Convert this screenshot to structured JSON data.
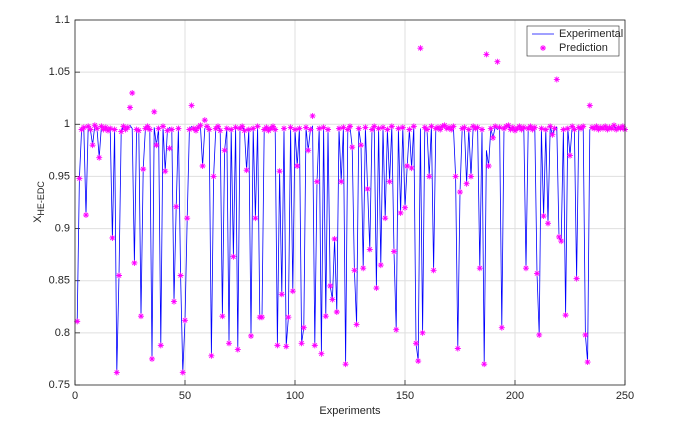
{
  "chart_data": {
    "type": "line",
    "xlabel": "Experiments",
    "ylabel": "X",
    "ylabel_subscript": "HE-EDC",
    "x": [
      1,
      2,
      3,
      4,
      5,
      6,
      7,
      8,
      9,
      10,
      11,
      12,
      13,
      14,
      15,
      16,
      17,
      18,
      19,
      20,
      21,
      22,
      23,
      24,
      25,
      26,
      27,
      28,
      29,
      30,
      31,
      32,
      33,
      34,
      35,
      36,
      37,
      38,
      39,
      40,
      41,
      42,
      43,
      44,
      45,
      46,
      47,
      48,
      49,
      50,
      51,
      52,
      53,
      54,
      55,
      56,
      57,
      58,
      59,
      60,
      61,
      62,
      63,
      64,
      65,
      66,
      67,
      68,
      69,
      70,
      71,
      72,
      73,
      74,
      75,
      76,
      77,
      78,
      79,
      80,
      81,
      82,
      83,
      84,
      85,
      86,
      87,
      88,
      89,
      90,
      91,
      92,
      93,
      94,
      95,
      96,
      97,
      98,
      99,
      100,
      101,
      102,
      103,
      104,
      105,
      106,
      107,
      108,
      109,
      110,
      111,
      112,
      113,
      114,
      115,
      116,
      117,
      118,
      119,
      120,
      121,
      122,
      123,
      124,
      125,
      126,
      127,
      128,
      129,
      130,
      131,
      132,
      133,
      134,
      135,
      136,
      137,
      138,
      139,
      140,
      141,
      142,
      143,
      144,
      145,
      146,
      147,
      148,
      149,
      150,
      151,
      152,
      153,
      154,
      155,
      156,
      157,
      158,
      159,
      160,
      161,
      162,
      163,
      164,
      165,
      166,
      167,
      168,
      169,
      170,
      171,
      172,
      173,
      174,
      175,
      176,
      177,
      178,
      179,
      180,
      181,
      182,
      183,
      184,
      185,
      186,
      187,
      188,
      189,
      190,
      191,
      192,
      193,
      194,
      195,
      196,
      197,
      198,
      199,
      200,
      201,
      202,
      203,
      204,
      205,
      206,
      207,
      208,
      209,
      210,
      211,
      212,
      213,
      214,
      215,
      216,
      217,
      218,
      219,
      220,
      221,
      222,
      223,
      224,
      225,
      226,
      227,
      228,
      229,
      230,
      231,
      232,
      233,
      234,
      235,
      236,
      237,
      238,
      239,
      240,
      241,
      242,
      243,
      244,
      245,
      246,
      247,
      248,
      249,
      250
    ],
    "series": [
      {
        "name": "Experimental",
        "color": "#0000ff",
        "style": "line",
        "values": [
          0.81,
          0.948,
          0.995,
          0.997,
          0.913,
          0.998,
          0.995,
          0.98,
          0.999,
          0.996,
          0.968,
          0.998,
          0.995,
          0.997,
          0.994,
          0.996,
          0.89,
          0.995,
          0.762,
          0.855,
          0.993,
          0.998,
          0.995,
          0.997,
          0.999,
          0.996,
          0.867,
          0.995,
          0.994,
          0.816,
          0.957,
          0.996,
          0.998,
          0.995,
          0.775,
          0.997,
          0.98,
          0.996,
          0.788,
          0.998,
          0.955,
          0.994,
          0.997,
          0.995,
          0.83,
          0.921,
          0.996,
          0.855,
          0.762,
          0.812,
          0.91,
          0.995,
          0.998,
          0.996,
          0.994,
          0.997,
          0.999,
          0.96,
          0.996,
          0.998,
          0.995,
          0.778,
          0.95,
          0.996,
          0.998,
          0.994,
          0.816,
          0.975,
          0.996,
          0.79,
          0.995,
          0.873,
          0.997,
          0.784,
          0.996,
          0.998,
          0.994,
          0.956,
          0.995,
          0.797,
          0.996,
          0.91,
          0.998,
          0.815,
          0.815,
          0.995,
          0.997,
          0.994,
          0.996,
          0.998,
          0.995,
          0.788,
          0.955,
          0.837,
          0.996,
          0.787,
          0.815,
          0.997,
          0.84,
          0.995,
          0.96,
          0.996,
          0.79,
          0.805,
          0.997,
          0.975,
          0.995,
          0.998,
          0.788,
          0.945,
          0.996,
          0.78,
          0.997,
          0.816,
          0.995,
          0.845,
          0.832,
          0.89,
          0.82,
          0.996,
          0.945,
          0.997,
          0.77,
          0.995,
          0.998,
          0.978,
          0.86,
          0.808,
          0.996,
          0.98,
          0.862,
          0.997,
          0.938,
          0.88,
          0.995,
          0.998,
          0.843,
          0.996,
          0.865,
          0.997,
          0.91,
          0.995,
          0.945,
          0.998,
          0.878,
          0.803,
          0.996,
          0.915,
          0.997,
          0.92,
          0.96,
          0.995,
          0.958,
          0.998,
          0.79,
          0.773,
          0.996,
          0.8,
          0.997,
          0.995,
          0.95,
          0.998,
          0.86,
          0.996,
          0.997,
          0.995,
          0.998,
          0.999,
          0.996,
          0.997,
          0.995,
          0.998,
          0.95,
          0.785,
          0.935,
          0.996,
          0.997,
          0.943,
          0.995,
          0.95,
          0.998,
          0.996,
          0.997,
          0.862,
          0.995,
          0.77,
          0.975,
          0.96,
          0.996,
          0.987,
          0.998,
          0.995,
          0.997,
          0.805,
          0.996,
          0.998,
          0.999,
          0.995,
          0.997,
          0.994,
          0.996,
          0.998,
          0.995,
          0.997,
          0.862,
          0.996,
          0.998,
          0.995,
          0.997,
          0.857,
          0.798,
          0.996,
          0.912,
          0.995,
          0.905,
          0.998,
          0.99,
          0.996,
          0.997,
          0.892,
          0.888,
          0.995,
          0.817,
          0.996,
          0.97,
          0.998,
          0.995,
          0.852,
          0.997,
          0.996,
          0.998,
          0.798,
          0.772,
          0.995,
          0.997,
          0.996,
          0.998,
          0.995,
          0.997,
          0.996,
          0.998,
          0.995,
          0.997,
          0.996,
          0.999,
          0.995,
          0.997,
          0.996,
          0.998,
          0.995
        ]
      },
      {
        "name": "Prediction",
        "color": "#ff00ff",
        "style": "marker",
        "values": [
          0.811,
          0.948,
          0.995,
          0.997,
          0.913,
          0.998,
          0.995,
          0.98,
          0.999,
          0.996,
          0.968,
          0.998,
          0.995,
          0.997,
          0.994,
          0.996,
          0.891,
          0.995,
          0.762,
          0.855,
          0.993,
          0.998,
          0.995,
          0.997,
          1.016,
          1.03,
          0.867,
          0.995,
          0.994,
          0.816,
          0.957,
          0.996,
          0.998,
          0.995,
          0.775,
          1.012,
          0.98,
          0.996,
          0.788,
          0.998,
          0.955,
          0.994,
          0.977,
          0.995,
          0.83,
          0.921,
          0.996,
          0.855,
          0.762,
          0.812,
          0.91,
          0.995,
          1.018,
          0.996,
          0.994,
          0.997,
          0.999,
          0.96,
          1.004,
          0.998,
          0.995,
          0.778,
          0.95,
          0.996,
          0.998,
          0.994,
          0.816,
          0.975,
          0.996,
          0.79,
          0.995,
          0.873,
          0.997,
          0.784,
          0.996,
          0.998,
          0.994,
          0.956,
          0.995,
          0.797,
          0.996,
          0.91,
          0.998,
          0.815,
          0.815,
          0.995,
          0.997,
          0.994,
          0.996,
          0.998,
          0.995,
          0.788,
          0.955,
          0.837,
          0.996,
          0.787,
          0.815,
          0.997,
          0.84,
          0.995,
          0.96,
          0.996,
          0.79,
          0.805,
          0.997,
          0.975,
          0.995,
          1.008,
          0.788,
          0.945,
          0.996,
          0.78,
          0.997,
          0.816,
          0.995,
          0.845,
          0.832,
          0.89,
          0.82,
          0.996,
          0.945,
          0.997,
          0.77,
          0.995,
          0.998,
          0.978,
          0.86,
          0.808,
          0.996,
          0.98,
          0.862,
          0.997,
          0.938,
          0.88,
          0.995,
          0.998,
          0.843,
          0.996,
          0.865,
          0.997,
          0.91,
          0.995,
          0.945,
          0.998,
          0.878,
          0.803,
          0.996,
          0.915,
          0.997,
          0.92,
          0.96,
          0.995,
          0.958,
          0.998,
          0.79,
          0.773,
          1.073,
          0.8,
          0.997,
          0.995,
          0.95,
          0.998,
          0.86,
          0.996,
          0.997,
          0.995,
          0.998,
          0.999,
          0.996,
          0.997,
          0.995,
          0.998,
          0.95,
          0.785,
          0.935,
          0.996,
          0.997,
          0.943,
          0.995,
          0.95,
          0.998,
          0.996,
          0.997,
          0.862,
          0.995,
          0.77,
          1.067,
          0.96,
          0.996,
          0.987,
          0.998,
          1.06,
          0.997,
          0.805,
          0.996,
          0.998,
          0.999,
          0.995,
          0.997,
          0.994,
          0.996,
          0.998,
          0.995,
          0.997,
          0.862,
          0.996,
          0.998,
          0.995,
          0.997,
          0.857,
          0.798,
          0.996,
          0.912,
          0.995,
          0.905,
          0.998,
          0.99,
          0.996,
          1.043,
          0.892,
          0.888,
          0.995,
          0.817,
          0.996,
          0.97,
          0.998,
          0.995,
          0.852,
          0.997,
          0.996,
          0.998,
          0.798,
          0.772,
          1.018,
          0.997,
          0.996,
          0.998,
          0.995,
          0.997,
          0.996,
          0.998,
          0.995,
          0.997,
          0.996,
          0.999,
          0.995,
          0.997,
          0.996,
          0.998,
          0.995
        ]
      }
    ],
    "xlim": [
      0,
      250
    ],
    "xticks": [
      0,
      50,
      100,
      150,
      200,
      250
    ],
    "ylim": [
      0.75,
      1.1
    ],
    "yticks": [
      0.75,
      0.8,
      0.85,
      0.9,
      0.95,
      1,
      1.05,
      1.1
    ],
    "grid": true,
    "legend": "upper right"
  }
}
